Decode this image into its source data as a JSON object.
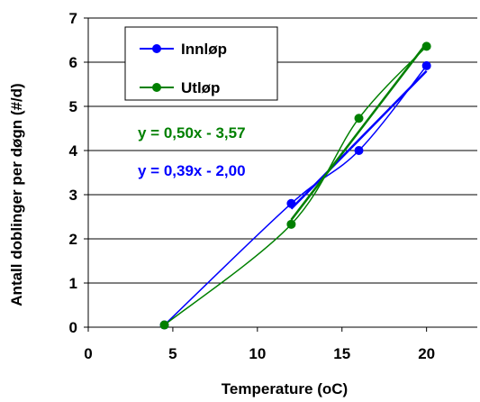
{
  "chart_data": {
    "type": "scatter",
    "xlabel": "Temperature (oC)",
    "ylabel": "Antall doblinger per døgn (#/d)",
    "xlim": [
      0,
      23
    ],
    "ylim": [
      0,
      7
    ],
    "x_ticks": [
      0,
      5,
      10,
      15,
      20
    ],
    "y_ticks": [
      0,
      1,
      2,
      3,
      4,
      5,
      6,
      7
    ],
    "grid": "horizontal",
    "legend": "top-left",
    "series": [
      {
        "name": "Innløp",
        "color": "#0000FF",
        "x": [
          4.5,
          12,
          16,
          20
        ],
        "y": [
          0.05,
          2.8,
          4.0,
          5.92
        ],
        "trendline": {
          "label": "y = 0,39x - 2,00",
          "slope": 0.39,
          "intercept": -2.0,
          "x_range": [
            12,
            20
          ]
        }
      },
      {
        "name": "Utløp",
        "color": "#008000",
        "x": [
          4.5,
          12,
          16,
          20
        ],
        "y": [
          0.05,
          2.33,
          4.73,
          6.36
        ],
        "trendline": {
          "label": "y = 0,50x - 3,57",
          "slope": 0.5,
          "intercept": -3.57,
          "x_range": [
            12,
            20
          ]
        }
      }
    ]
  }
}
